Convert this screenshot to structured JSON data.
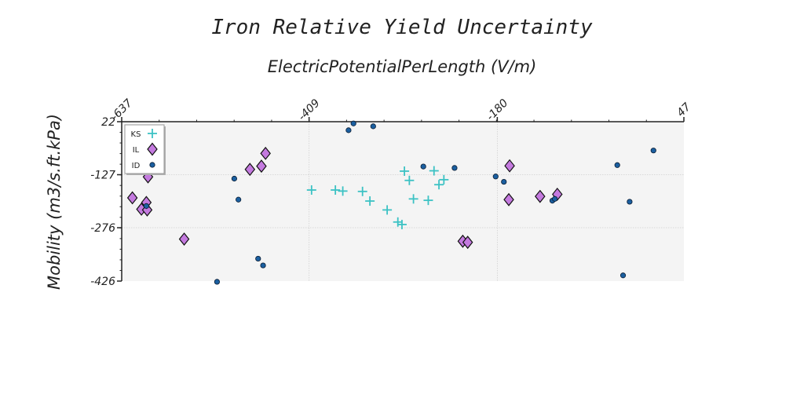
{
  "chart_data": {
    "type": "scatter",
    "title": "Iron Relative Yield Uncertainty",
    "xlabel": "ElectricPotentialPerLength (V/m)",
    "ylabel": "Mobility (m3/s.ft.kPa)",
    "xlim": [
      -637,
      47
    ],
    "ylim": [
      -426,
      22
    ],
    "xticks": [
      -637,
      -409,
      -180,
      47
    ],
    "yticks": [
      22,
      -127,
      -276,
      -426
    ],
    "xaxis_position": "top",
    "grid": true,
    "legend_position": "top-left",
    "series": [
      {
        "name": "KS",
        "marker": "plus",
        "color": "#3cc2c4",
        "points": [
          [
            -406,
            -170
          ],
          [
            -377,
            -170
          ],
          [
            -368,
            -173
          ],
          [
            -344,
            -174
          ],
          [
            -335,
            -201
          ],
          [
            -314,
            -226
          ],
          [
            -301,
            -260
          ],
          [
            -296,
            -267
          ],
          [
            -293,
            -117
          ],
          [
            -287,
            -143
          ],
          [
            -282,
            -195
          ],
          [
            -264,
            -199
          ],
          [
            -257,
            -116
          ],
          [
            -251,
            -155
          ],
          [
            -245,
            -141
          ]
        ]
      },
      {
        "name": "IL",
        "marker": "diamond",
        "color": "#c47adf",
        "points": [
          [
            -605,
            -133
          ],
          [
            -624,
            -192
          ],
          [
            -613,
            -224
          ],
          [
            -606,
            -226
          ],
          [
            -607,
            -205
          ],
          [
            -561,
            -308
          ],
          [
            -481,
            -112
          ],
          [
            -467,
            -103
          ],
          [
            -462,
            -67
          ],
          [
            -222,
            -314
          ],
          [
            -216,
            -317
          ],
          [
            -165,
            -102
          ],
          [
            -166,
            -197
          ],
          [
            -128,
            -188
          ],
          [
            -107,
            -182
          ]
        ]
      },
      {
        "name": "ID",
        "marker": "circle",
        "color": "#1b5fa0",
        "points": [
          [
            -607,
            -215
          ],
          [
            -500,
            -138
          ],
          [
            -495,
            -197
          ],
          [
            -465,
            -382
          ],
          [
            -471,
            -363
          ],
          [
            -521,
            -428
          ],
          [
            -361,
            -2
          ],
          [
            -355,
            17
          ],
          [
            -331,
            9
          ],
          [
            -270,
            -104
          ],
          [
            -232,
            -108
          ],
          [
            -182,
            -132
          ],
          [
            -172,
            -147
          ],
          [
            -113,
            -200
          ],
          [
            -110,
            -195
          ],
          [
            -34,
            -100
          ],
          [
            -27,
            -410
          ],
          [
            -19,
            -203
          ],
          [
            10,
            -59
          ]
        ]
      }
    ]
  }
}
